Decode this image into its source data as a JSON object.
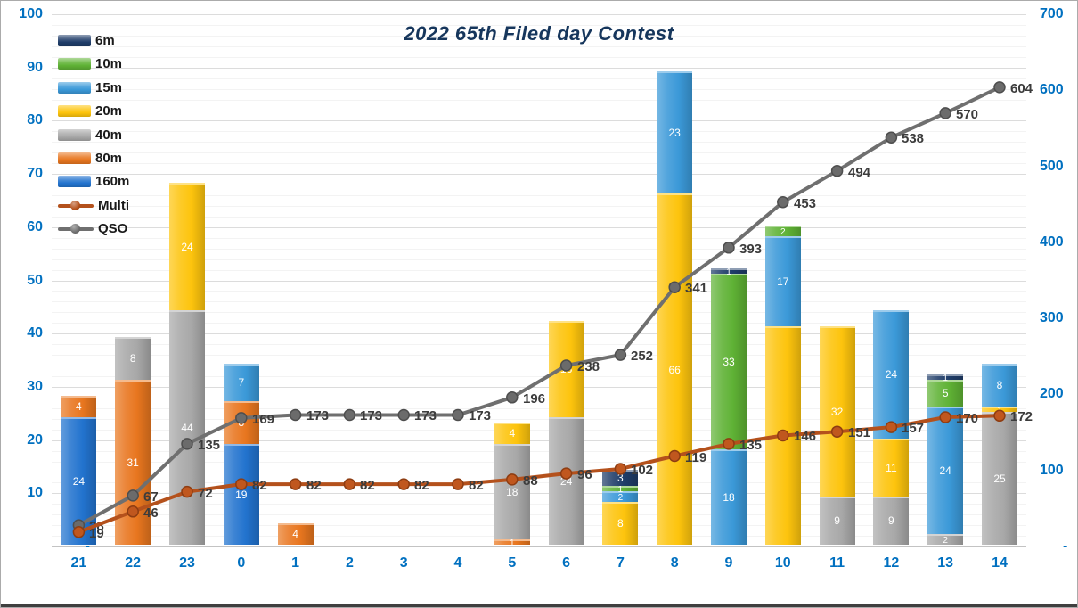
{
  "title": "2022 65th Filed day Contest",
  "legend": [
    {
      "label": "6m",
      "type": "bar",
      "color": "#1E3C68"
    },
    {
      "label": "10m",
      "type": "bar",
      "color": "#5FB235"
    },
    {
      "label": "15m",
      "type": "bar",
      "color": "#3B99D8"
    },
    {
      "label": "20m",
      "type": "bar",
      "color": "#FDC40D"
    },
    {
      "label": "40m",
      "type": "bar",
      "color": "#A8A8A8"
    },
    {
      "label": "80m",
      "type": "bar",
      "color": "#E8761F"
    },
    {
      "label": "160m",
      "type": "bar",
      "color": "#2273CE"
    },
    {
      "label": "Multi",
      "type": "line",
      "color": "#B4511C"
    },
    {
      "label": "QSO",
      "type": "line",
      "color": "#6F6F6F"
    }
  ],
  "left_axis": {
    "ticks": [
      "100",
      "90",
      "80",
      "70",
      "60",
      "50",
      "40",
      "30",
      "20",
      "10",
      "-"
    ],
    "min": 0,
    "max": 100
  },
  "right_axis": {
    "ticks": [
      "700",
      "600",
      "500",
      "400",
      "300",
      "200",
      "100",
      "-"
    ],
    "min": 0,
    "max": 700
  },
  "colors": {
    "axis_label": "#0070C0",
    "title": "#16365C",
    "grid_major": "#DCDCDC",
    "grid_minor": "#F3F3F3",
    "qso_line": "#6F6F6F",
    "qso_marker": "#6B6B6B",
    "multi_line": "#B4511C",
    "multi_marker": "#C0571E",
    "data_label": "#3C3C3C"
  },
  "chart_data": {
    "type": "bar",
    "subtype": "stacked-bars-with-lines",
    "title": "2022 65th Filed day Contest",
    "categories": [
      "21",
      "22",
      "23",
      "0",
      "1",
      "2",
      "3",
      "4",
      "5",
      "6",
      "7",
      "8",
      "9",
      "10",
      "11",
      "12",
      "13",
      "14"
    ],
    "stack_order_bottom_to_top": [
      "160m",
      "80m",
      "40m",
      "20m",
      "15m",
      "10m",
      "6m"
    ],
    "left_axis_range": [
      0,
      100
    ],
    "right_axis_range": [
      0,
      700
    ],
    "grid": true,
    "legend_position": "top-left",
    "series": [
      {
        "name": "6m",
        "axis": "left",
        "values": [
          0,
          0,
          0,
          0,
          0,
          0,
          0,
          0,
          0,
          0,
          3,
          0,
          1,
          0,
          0,
          0,
          1,
          0
        ]
      },
      {
        "name": "10m",
        "axis": "left",
        "values": [
          0,
          0,
          0,
          0,
          0,
          0,
          0,
          0,
          0,
          0,
          1,
          0,
          33,
          2,
          0,
          0,
          5,
          0
        ]
      },
      {
        "name": "15m",
        "axis": "left",
        "values": [
          0,
          0,
          0,
          7,
          0,
          0,
          0,
          0,
          0,
          0,
          2,
          23,
          18,
          17,
          0,
          24,
          24,
          8
        ]
      },
      {
        "name": "20m",
        "axis": "left",
        "values": [
          0,
          0,
          24,
          0,
          0,
          0,
          0,
          0,
          4,
          18,
          8,
          66,
          0,
          41,
          32,
          11,
          0,
          1
        ]
      },
      {
        "name": "40m",
        "axis": "left",
        "values": [
          0,
          8,
          44,
          0,
          0,
          0,
          0,
          0,
          18,
          24,
          0,
          0,
          0,
          0,
          9,
          9,
          2,
          25
        ]
      },
      {
        "name": "80m",
        "axis": "left",
        "values": [
          4,
          31,
          0,
          8,
          4,
          0,
          0,
          0,
          1,
          0,
          0,
          0,
          0,
          0,
          0,
          0,
          0,
          0
        ]
      },
      {
        "name": "160m",
        "axis": "left",
        "values": [
          24,
          0,
          0,
          19,
          0,
          0,
          0,
          0,
          0,
          0,
          0,
          0,
          0,
          0,
          0,
          0,
          0,
          0
        ]
      }
    ],
    "lines": [
      {
        "name": "QSO",
        "axis": "right",
        "color": "#6F6F6F",
        "marker": "#6B6B6B",
        "stroke_dark": "#4E4E4E",
        "values": [
          28,
          67,
          135,
          169,
          173,
          173,
          173,
          173,
          196,
          238,
          252,
          341,
          393,
          453,
          494,
          538,
          570,
          604
        ]
      },
      {
        "name": "Multi",
        "axis": "right",
        "color": "#B4511C",
        "marker": "#C0571E",
        "stroke_dark": "#8E3D12",
        "values": [
          19,
          46,
          72,
          82,
          82,
          82,
          82,
          82,
          88,
          96,
          102,
          119,
          135,
          146,
          151,
          157,
          170,
          172
        ]
      }
    ]
  }
}
